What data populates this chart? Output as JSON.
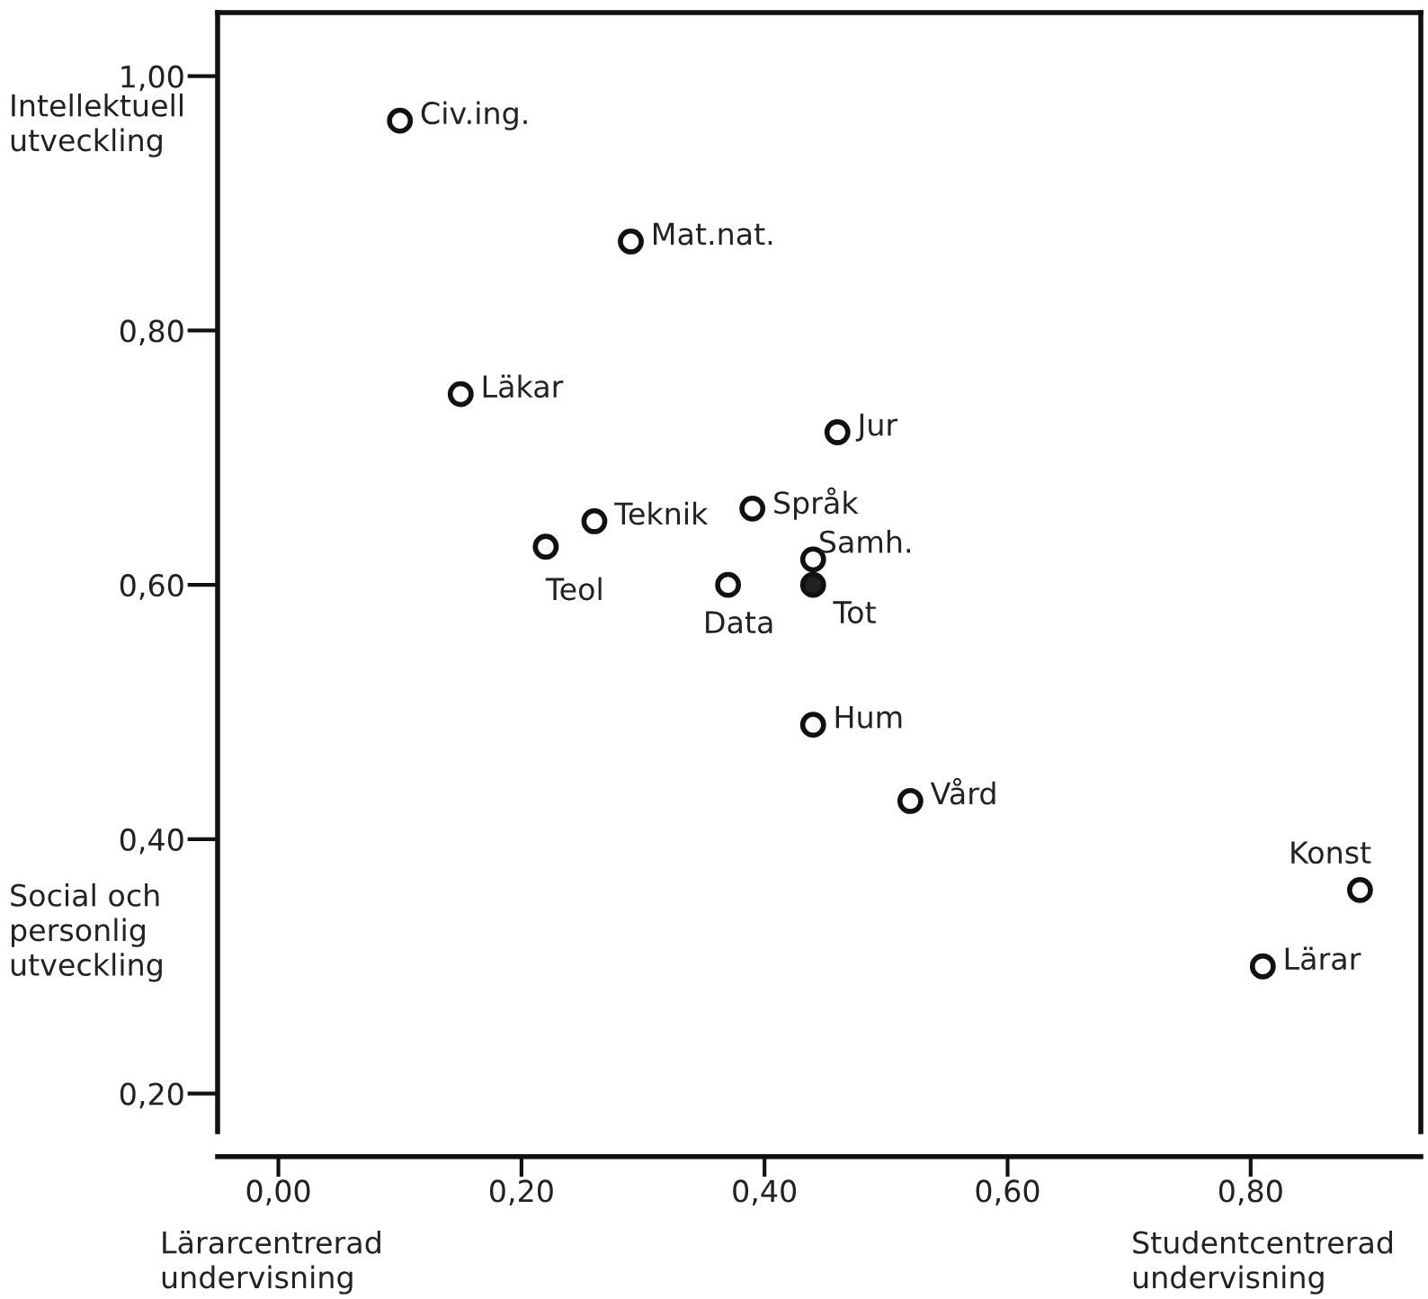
{
  "chart_data": {
    "type": "scatter",
    "xlim": [
      -0.05,
      0.94
    ],
    "ylim": [
      0.17,
      1.05
    ],
    "xticks": [
      {
        "value": 0.0,
        "label": "0,00"
      },
      {
        "value": 0.2,
        "label": "0,20"
      },
      {
        "value": 0.4,
        "label": "0,40"
      },
      {
        "value": 0.6,
        "label": "0,60"
      },
      {
        "value": 0.8,
        "label": "0,80"
      }
    ],
    "yticks": [
      {
        "value": 0.2,
        "label": "0,20"
      },
      {
        "value": 0.4,
        "label": "0,40"
      },
      {
        "value": 0.6,
        "label": "0,60"
      },
      {
        "value": 0.8,
        "label": "0,80"
      },
      {
        "value": 1.0,
        "label": "1,00"
      }
    ],
    "grid": false,
    "marker": "circle",
    "series": [
      {
        "color": "#ffffff",
        "x": [
          0.1,
          0.29,
          0.15,
          0.46,
          0.26,
          0.39,
          0.22,
          0.44,
          0.37,
          0.44,
          0.52,
          0.89,
          0.81
        ],
        "values": [
          0.965,
          0.87,
          0.75,
          0.72,
          0.65,
          0.66,
          0.63,
          0.62,
          0.6,
          0.49,
          0.43,
          0.36,
          0.3
        ]
      },
      {
        "color": "#222222",
        "x": [
          0.44
        ],
        "values": [
          0.6
        ]
      }
    ],
    "annotations": [
      {
        "text": "Civ.ing.",
        "x": 0.1,
        "y": 0.965
      },
      {
        "text": "Mat.nat.",
        "x": 0.29,
        "y": 0.87
      },
      {
        "text": "Läkar",
        "x": 0.15,
        "y": 0.75
      },
      {
        "text": "Jur",
        "x": 0.46,
        "y": 0.72
      },
      {
        "text": "Teknik",
        "x": 0.26,
        "y": 0.65
      },
      {
        "text": "Språk",
        "x": 0.39,
        "y": 0.66
      },
      {
        "text": "Teol",
        "x": 0.22,
        "y": 0.63
      },
      {
        "text": "Samh.",
        "x": 0.44,
        "y": 0.62
      },
      {
        "text": "Data",
        "x": 0.37,
        "y": 0.6
      },
      {
        "text": "Tot",
        "x": 0.44,
        "y": 0.6
      },
      {
        "text": "Hum",
        "x": 0.44,
        "y": 0.49
      },
      {
        "text": "Vård",
        "x": 0.52,
        "y": 0.43
      },
      {
        "text": "Konst",
        "x": 0.89,
        "y": 0.36
      },
      {
        "text": "Lärar",
        "x": 0.81,
        "y": 0.3
      },
      "Intellektuell\nutveckling",
      "Social och\npersonlig\nutveckling",
      "Lärarcentrerad\nundervisning",
      "Studentcentrerad\nundervisning"
    ]
  }
}
